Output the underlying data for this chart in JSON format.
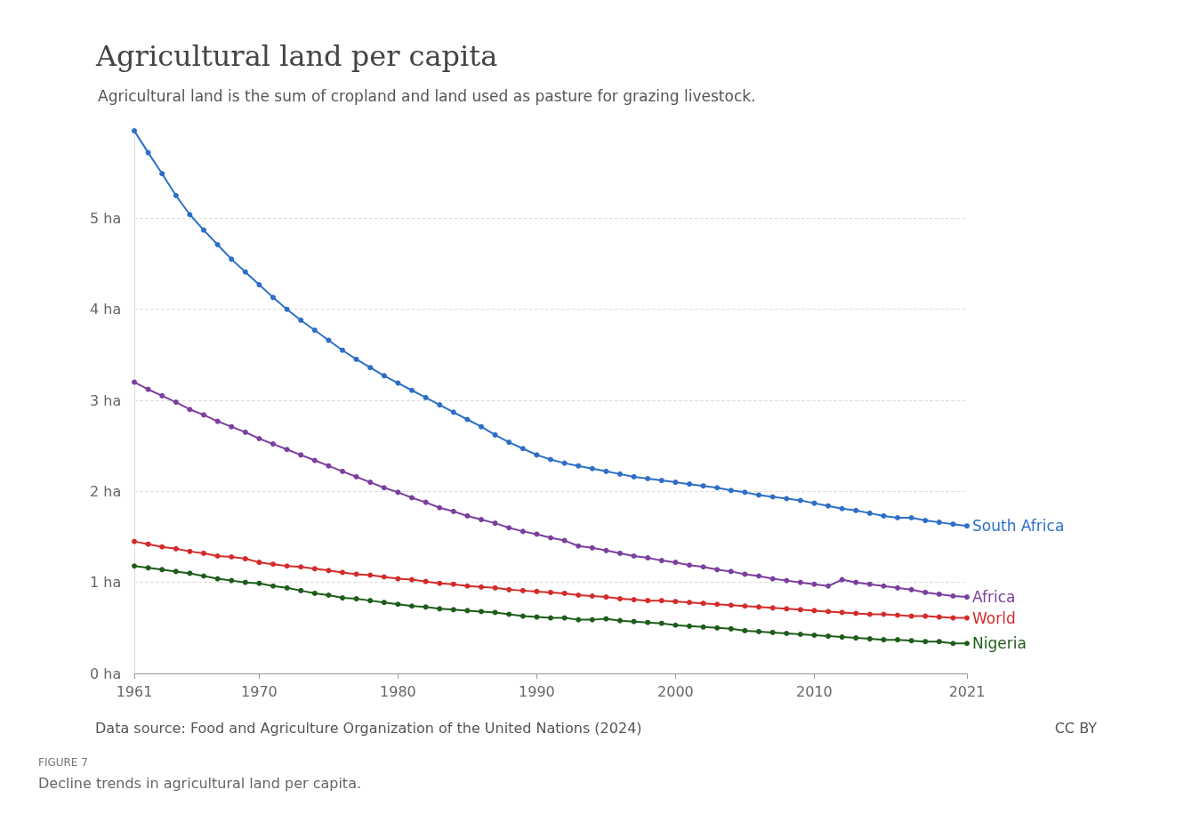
{
  "chart_data": {
    "type": "line",
    "title": "Agricultural land per capita",
    "subtitle": "Agricultural land is the sum of cropland and land used as pasture for grazing livestock.",
    "annotations": [
      "Data source: Food and Agriculture Organization of the United Nations (2024)",
      "CC BY",
      "FIGURE 7",
      "Decline trends in agricultural land per capita."
    ],
    "x": [
      1961,
      1962,
      1963,
      1964,
      1965,
      1966,
      1967,
      1968,
      1969,
      1970,
      1971,
      1972,
      1973,
      1974,
      1975,
      1976,
      1977,
      1978,
      1979,
      1980,
      1981,
      1982,
      1983,
      1984,
      1985,
      1986,
      1987,
      1988,
      1989,
      1990,
      1991,
      1992,
      1993,
      1994,
      1995,
      1996,
      1997,
      1998,
      1999,
      2000,
      2001,
      2002,
      2003,
      2004,
      2005,
      2006,
      2007,
      2008,
      2009,
      2010,
      2011,
      2012,
      2013,
      2014,
      2015,
      2016,
      2017,
      2018,
      2019,
      2020,
      2021
    ],
    "series": [
      {
        "name": "South Africa",
        "color": "#2d6fc6",
        "values": [
          5.96,
          5.72,
          5.49,
          5.25,
          5.04,
          4.87,
          4.71,
          4.55,
          4.41,
          4.27,
          4.13,
          4.0,
          3.88,
          3.77,
          3.66,
          3.55,
          3.45,
          3.36,
          3.27,
          3.19,
          3.11,
          3.03,
          2.95,
          2.87,
          2.79,
          2.71,
          2.62,
          2.54,
          2.47,
          2.4,
          2.35,
          2.31,
          2.28,
          2.25,
          2.22,
          2.19,
          2.16,
          2.14,
          2.12,
          2.1,
          2.08,
          2.06,
          2.04,
          2.01,
          1.99,
          1.96,
          1.94,
          1.92,
          1.9,
          1.87,
          1.84,
          1.81,
          1.79,
          1.76,
          1.73,
          1.71,
          1.71,
          1.68,
          1.66,
          1.64,
          1.62
        ]
      },
      {
        "name": "Africa",
        "color": "#7b3f9e",
        "values": [
          3.2,
          3.12,
          3.05,
          2.98,
          2.9,
          2.84,
          2.77,
          2.71,
          2.65,
          2.58,
          2.52,
          2.46,
          2.4,
          2.34,
          2.28,
          2.22,
          2.16,
          2.1,
          2.04,
          1.99,
          1.93,
          1.88,
          1.82,
          1.78,
          1.73,
          1.69,
          1.65,
          1.6,
          1.56,
          1.53,
          1.49,
          1.46,
          1.4,
          1.38,
          1.35,
          1.32,
          1.29,
          1.27,
          1.24,
          1.22,
          1.19,
          1.17,
          1.14,
          1.12,
          1.09,
          1.07,
          1.04,
          1.02,
          1.0,
          0.98,
          0.96,
          1.03,
          1.0,
          0.98,
          0.96,
          0.94,
          0.92,
          0.89,
          0.87,
          0.85,
          0.84
        ]
      },
      {
        "name": "World",
        "color": "#d42b2b",
        "values": [
          1.45,
          1.42,
          1.39,
          1.37,
          1.34,
          1.32,
          1.29,
          1.28,
          1.26,
          1.22,
          1.2,
          1.18,
          1.17,
          1.15,
          1.13,
          1.11,
          1.09,
          1.08,
          1.06,
          1.04,
          1.03,
          1.01,
          0.99,
          0.98,
          0.96,
          0.95,
          0.94,
          0.92,
          0.91,
          0.9,
          0.89,
          0.88,
          0.86,
          0.85,
          0.84,
          0.82,
          0.81,
          0.8,
          0.8,
          0.79,
          0.78,
          0.77,
          0.76,
          0.75,
          0.74,
          0.73,
          0.72,
          0.71,
          0.7,
          0.69,
          0.68,
          0.67,
          0.66,
          0.65,
          0.65,
          0.64,
          0.63,
          0.63,
          0.62,
          0.61,
          0.61
        ]
      },
      {
        "name": "Nigeria",
        "color": "#1e5c1a",
        "values": [
          1.18,
          1.16,
          1.14,
          1.12,
          1.1,
          1.07,
          1.04,
          1.02,
          1.0,
          0.99,
          0.96,
          0.94,
          0.91,
          0.88,
          0.86,
          0.83,
          0.82,
          0.8,
          0.78,
          0.76,
          0.74,
          0.73,
          0.71,
          0.7,
          0.69,
          0.68,
          0.67,
          0.65,
          0.63,
          0.62,
          0.61,
          0.61,
          0.59,
          0.59,
          0.6,
          0.58,
          0.57,
          0.56,
          0.55,
          0.53,
          0.52,
          0.51,
          0.5,
          0.49,
          0.47,
          0.46,
          0.45,
          0.44,
          0.43,
          0.42,
          0.41,
          0.4,
          0.39,
          0.38,
          0.37,
          0.37,
          0.36,
          0.35,
          0.35,
          0.33,
          0.33
        ]
      }
    ],
    "xlim": [
      1961,
      2021
    ],
    "xticks": [
      1961,
      1970,
      1980,
      1990,
      2000,
      2010,
      2021
    ],
    "ylim": [
      0,
      6
    ],
    "yticks": [
      {
        "value": 0,
        "label": "0 ha"
      },
      {
        "value": 1,
        "label": "1 ha"
      },
      {
        "value": 2,
        "label": "2 ha"
      },
      {
        "value": 3,
        "label": "3 ha"
      },
      {
        "value": 4,
        "label": "4 ha"
      },
      {
        "value": 5,
        "label": "5 ha"
      }
    ],
    "grid": "y",
    "legend": false,
    "marker": "circle",
    "line_style": "solid"
  }
}
